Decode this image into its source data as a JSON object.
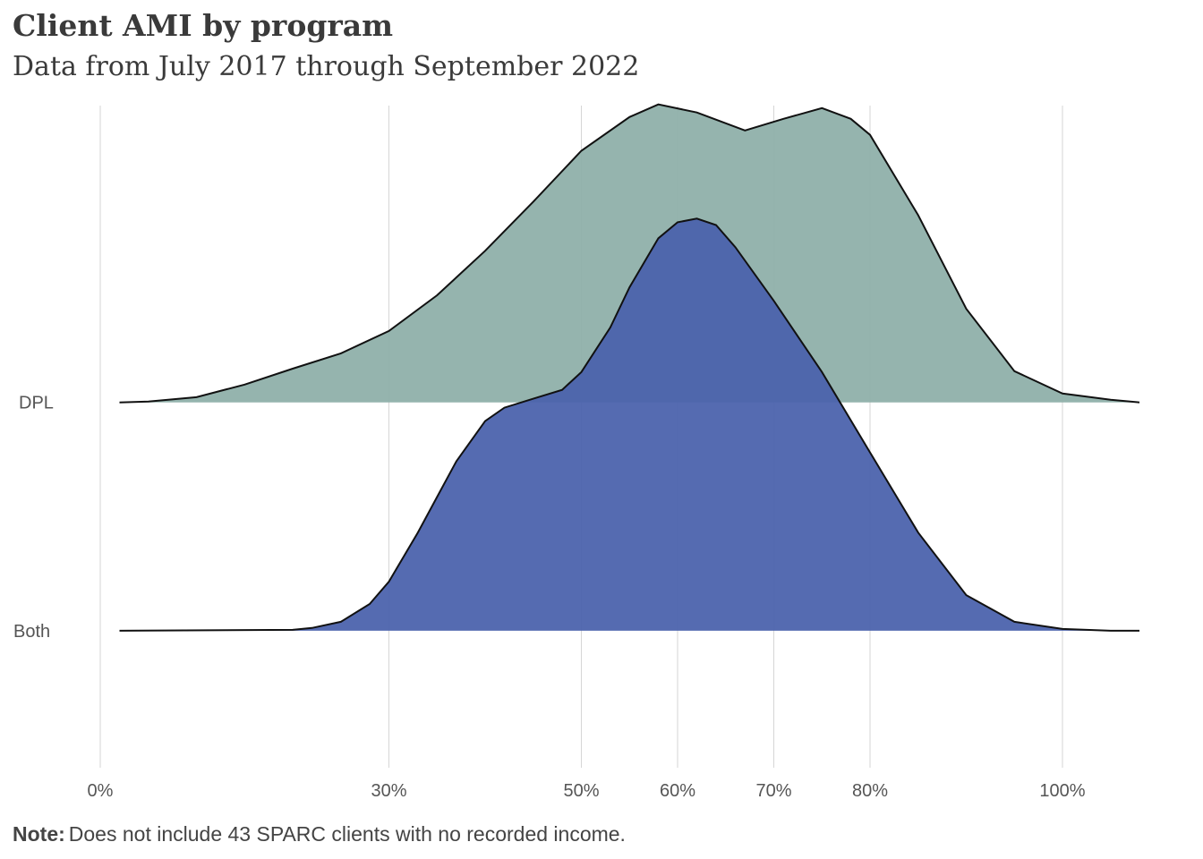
{
  "chart_data": {
    "type": "ridgeline",
    "title": "Client AMI by program",
    "subtitle": "Data from July 2017 through September 2022",
    "note_label": "Note:",
    "note": "Does not include 43 SPARC clients with no recorded income.",
    "categories": [
      "Both",
      "DPL"
    ],
    "xlim": [
      0,
      108
    ],
    "xticks": [
      {
        "value": 0,
        "label": "0%"
      },
      {
        "value": 30,
        "label": "30%"
      },
      {
        "value": 50,
        "label": "50%"
      },
      {
        "value": 60,
        "label": "60%"
      },
      {
        "value": 70,
        "label": "70%"
      },
      {
        "value": 80,
        "label": "80%"
      },
      {
        "value": 100,
        "label": "100%"
      }
    ],
    "ylim": [
      -0.6,
      2.3
    ],
    "grid": true,
    "series": [
      {
        "name": "DPL",
        "color": "#8fb0aa",
        "x": [
          2,
          5,
          10,
          15,
          20,
          25,
          30,
          35,
          40,
          45,
          50,
          55,
          58,
          62,
          67,
          71,
          75,
          78,
          80,
          85,
          90,
          95,
          100,
          105,
          108
        ],
        "values": [
          0,
          0.004,
          0.023,
          0.078,
          0.148,
          0.215,
          0.313,
          0.469,
          0.664,
          0.879,
          1.102,
          1.25,
          1.305,
          1.27,
          1.191,
          1.242,
          1.289,
          1.242,
          1.172,
          0.82,
          0.41,
          0.137,
          0.039,
          0.012,
          0
        ]
      },
      {
        "name": "Both",
        "color": "#4a62ac",
        "x": [
          2,
          20,
          22,
          25,
          28,
          30,
          33,
          35,
          37,
          40,
          42,
          45,
          48,
          50,
          53,
          55,
          58,
          60,
          62,
          64,
          66,
          70,
          75,
          80,
          85,
          90,
          95,
          100,
          105,
          108
        ],
        "values": [
          0,
          0.004,
          0.012,
          0.039,
          0.117,
          0.215,
          0.43,
          0.586,
          0.742,
          0.918,
          0.977,
          1.016,
          1.055,
          1.133,
          1.328,
          1.504,
          1.719,
          1.789,
          1.805,
          1.777,
          1.68,
          1.445,
          1.133,
          0.781,
          0.43,
          0.156,
          0.039,
          0.008,
          0,
          0
        ]
      }
    ]
  }
}
